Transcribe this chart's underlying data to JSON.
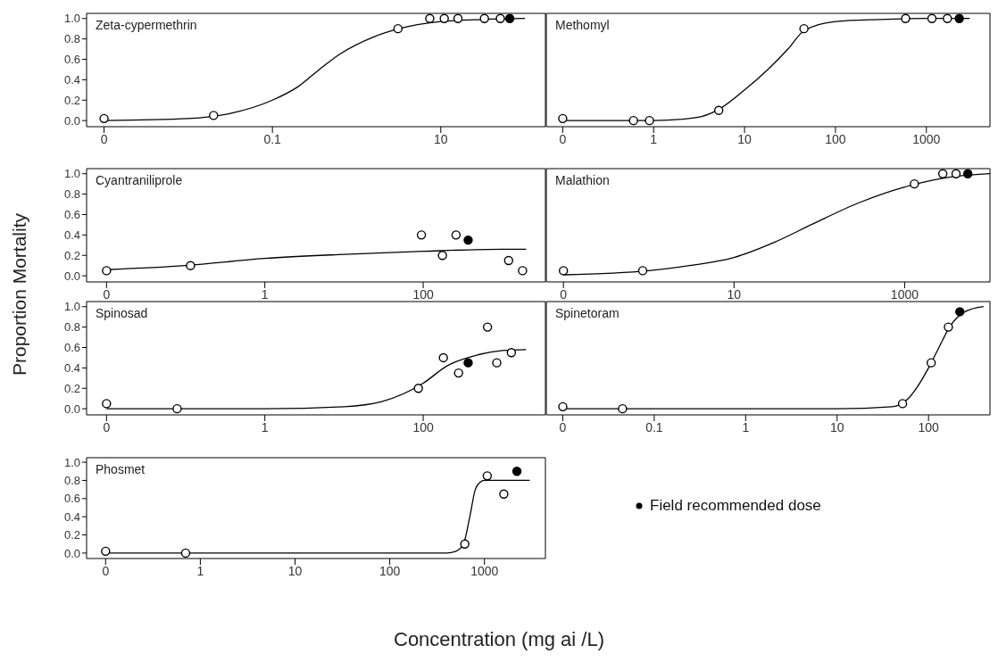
{
  "chart_data": [
    {
      "type": "scatter",
      "title": "Zeta-cypermethrin",
      "ylabel": "Proportion Mortality",
      "log": "x",
      "xlim": [
        0.00062,
        175
      ],
      "xticks": [
        {
          "value": 0.001,
          "label": "0"
        },
        0.1,
        10
      ],
      "ylim": [
        -0.06,
        1.05
      ],
      "yticks": [
        {
          "value": 0,
          "label": "0.0"
        },
        {
          "value": 0.2,
          "label": "0.2"
        },
        {
          "value": 0.4,
          "label": "0.4"
        },
        {
          "value": 0.6,
          "label": "0.6"
        },
        {
          "value": 0.8,
          "label": "0.8"
        },
        {
          "value": 1,
          "label": "1.0"
        }
      ],
      "series": [
        {
          "color": "#000000",
          "marker": "circle",
          "x": [
            0.001,
            0.02,
            3.1,
            7.4,
            11,
            16,
            33,
            51
          ],
          "values": [
            0.02,
            0.05,
            0.9,
            1.0,
            1.0,
            1.0,
            1.0,
            1.0
          ]
        },
        {
          "color": "#000000",
          "marker": "circle",
          "x": [
            66
          ],
          "values": [
            1.0
          ]
        },
        {
          "type": "line",
          "color": "#000000",
          "x": [
            0.001,
            0.01,
            0.0316,
            0.1,
            0.2,
            0.36,
            0.63,
            1.6,
            3.2,
            10,
            32,
            100
          ],
          "values": [
            0.0,
            0.02,
            0.07,
            0.2,
            0.33,
            0.5,
            0.65,
            0.82,
            0.9,
            0.97,
            0.99,
            1.0
          ]
        }
      ]
    },
    {
      "type": "scatter",
      "title": "Methomyl",
      "log": "x",
      "tick_labels": "x",
      "xlim": [
        0.066,
        5000
      ],
      "xticks": [
        {
          "value": 0.1,
          "label": "0"
        },
        1,
        10,
        100,
        1000
      ],
      "ylim": [
        -0.06,
        1.05
      ],
      "series": [
        {
          "color": "#000000",
          "marker": "circle",
          "x": [
            0.1,
            0.6,
            0.9,
            5.2,
            45,
            590,
            1150,
            1700
          ],
          "values": [
            0.02,
            0.0,
            0.0,
            0.1,
            0.9,
            1.0,
            1.0,
            1.0
          ]
        },
        {
          "color": "#000000",
          "marker": "circle",
          "x": [
            2300
          ],
          "values": [
            1.0
          ]
        },
        {
          "type": "line",
          "color": "#000000",
          "x": [
            0.1,
            1,
            3,
            5,
            10,
            18,
            30,
            45,
            100,
            300,
            1000,
            3000
          ],
          "values": [
            0.0,
            0.0,
            0.03,
            0.1,
            0.3,
            0.5,
            0.7,
            0.88,
            0.97,
            0.99,
            1.0,
            1.0
          ]
        }
      ]
    },
    {
      "type": "scatter",
      "title": "Cyantraniliprole",
      "log": "x",
      "xlim": [
        0.0056,
        3500
      ],
      "xticks": [
        {
          "value": 0.01,
          "label": "0"
        },
        1,
        100
      ],
      "ylim": [
        -0.06,
        1.05
      ],
      "yticks": [
        {
          "value": 0,
          "label": "0.0"
        },
        {
          "value": 0.2,
          "label": "0.2"
        },
        {
          "value": 0.4,
          "label": "0.4"
        },
        {
          "value": 0.6,
          "label": "0.6"
        },
        {
          "value": 0.8,
          "label": "0.8"
        },
        {
          "value": 1,
          "label": "1.0"
        }
      ],
      "series": [
        {
          "color": "#000000",
          "marker": "circle",
          "x": [
            0.01,
            0.115,
            95,
            175,
            260,
            1200,
            1800
          ],
          "values": [
            0.05,
            0.1,
            0.4,
            0.2,
            0.4,
            0.15,
            0.05
          ]
        },
        {
          "color": "#000000",
          "marker": "circle",
          "x": [
            370
          ],
          "values": [
            0.35
          ]
        },
        {
          "type": "line",
          "color": "#000000",
          "x": [
            0.01,
            0.1,
            1,
            10,
            100,
            1000,
            2000
          ],
          "values": [
            0.06,
            0.1,
            0.17,
            0.21,
            0.24,
            0.26,
            0.26
          ]
        }
      ]
    },
    {
      "type": "scatter",
      "title": "Malathion",
      "log": "x",
      "tick_labels": "x",
      "xlim": [
        0.063,
        10000
      ],
      "xticks": [
        {
          "value": 0.1,
          "label": "0"
        },
        10,
        1000
      ],
      "ylim": [
        -0.06,
        1.05
      ],
      "series": [
        {
          "color": "#000000",
          "marker": "circle",
          "x": [
            0.1,
            0.85,
            1300,
            2800,
            4000
          ],
          "values": [
            0.05,
            0.05,
            0.9,
            1.0,
            1.0
          ]
        },
        {
          "color": "#000000",
          "marker": "circle",
          "x": [
            5500
          ],
          "values": [
            1.0
          ]
        },
        {
          "type": "line",
          "color": "#000000",
          "x": [
            0.1,
            1,
            3,
            10,
            30,
            80,
            300,
            1000,
            3000,
            10000
          ],
          "values": [
            0.01,
            0.05,
            0.1,
            0.18,
            0.33,
            0.5,
            0.72,
            0.87,
            0.96,
            1.0
          ]
        }
      ]
    },
    {
      "type": "scatter",
      "title": "Spinosad",
      "log": "x",
      "xlim": [
        0.0056,
        3500
      ],
      "xticks": [
        {
          "value": 0.01,
          "label": "0"
        },
        1,
        100
      ],
      "ylim": [
        -0.06,
        1.05
      ],
      "yticks": [
        {
          "value": 0,
          "label": "0.0"
        },
        {
          "value": 0.2,
          "label": "0.2"
        },
        {
          "value": 0.4,
          "label": "0.4"
        },
        {
          "value": 0.6,
          "label": "0.6"
        },
        {
          "value": 0.8,
          "label": "0.8"
        },
        {
          "value": 1,
          "label": "1.0"
        }
      ],
      "series": [
        {
          "color": "#000000",
          "marker": "circle",
          "x": [
            0.01,
            0.078,
            87,
            180,
            280,
            650,
            850,
            1300
          ],
          "values": [
            0.05,
            0.0,
            0.2,
            0.5,
            0.35,
            0.8,
            0.45,
            0.55
          ]
        },
        {
          "color": "#000000",
          "marker": "circle",
          "x": [
            370
          ],
          "values": [
            0.45
          ]
        },
        {
          "type": "line",
          "color": "#000000",
          "x": [
            0.01,
            1,
            10,
            30,
            100,
            200,
            500,
            1000,
            2000
          ],
          "values": [
            0.0,
            0.0,
            0.02,
            0.07,
            0.25,
            0.42,
            0.53,
            0.57,
            0.58
          ]
        }
      ]
    },
    {
      "type": "scatter",
      "title": "Spinetoram",
      "log": "x",
      "tick_labels": "x",
      "xlim": [
        0.0066,
        470
      ],
      "xticks": [
        {
          "value": 0.01,
          "label": "0"
        },
        0.1,
        1,
        10,
        100
      ],
      "ylim": [
        -0.06,
        1.05
      ],
      "series": [
        {
          "color": "#000000",
          "marker": "circle",
          "x": [
            0.01,
            0.045,
            52,
            107,
            165
          ],
          "values": [
            0.02,
            0.0,
            0.05,
            0.45,
            0.8
          ]
        },
        {
          "color": "#000000",
          "marker": "circle",
          "x": [
            220
          ],
          "values": [
            0.95
          ]
        },
        {
          "type": "line",
          "color": "#000000",
          "x": [
            0.01,
            10,
            40,
            60,
            80,
            100,
            130,
            170,
            250,
            400
          ],
          "values": [
            0.0,
            0.0,
            0.02,
            0.1,
            0.25,
            0.4,
            0.6,
            0.8,
            0.95,
            1.0
          ]
        }
      ]
    },
    {
      "type": "scatter",
      "title": "Phosmet",
      "xlabel": "Concentration (mg ai /L)",
      "legend": "right",
      "log": "x",
      "xlim": [
        0.063,
        4400
      ],
      "xticks": [
        {
          "value": 0.1,
          "label": "0"
        },
        1,
        10,
        100,
        1000
      ],
      "ylim": [
        -0.06,
        1.05
      ],
      "yticks": [
        {
          "value": 0,
          "label": "0.0"
        },
        {
          "value": 0.2,
          "label": "0.2"
        },
        {
          "value": 0.4,
          "label": "0.4"
        },
        {
          "value": 0.6,
          "label": "0.6"
        },
        {
          "value": 0.8,
          "label": "0.8"
        },
        {
          "value": 1,
          "label": "1.0"
        }
      ],
      "series": [
        {
          "color": "#000000",
          "marker": "circle",
          "x": [
            0.1,
            0.7,
            620,
            1070,
            1600
          ],
          "values": [
            0.02,
            0.0,
            0.1,
            0.85,
            0.65
          ]
        },
        {
          "name": "Field recommended dose",
          "color": "#000000",
          "marker": "circle",
          "x": [
            2200
          ],
          "values": [
            0.9
          ]
        },
        {
          "type": "line",
          "color": "#000000",
          "x": [
            0.1,
            100,
            400,
            500,
            600,
            700,
            800,
            900,
            1000,
            3000
          ],
          "values": [
            0.0,
            0.0,
            0.0,
            0.02,
            0.1,
            0.4,
            0.7,
            0.78,
            0.8,
            0.8
          ]
        }
      ]
    }
  ]
}
